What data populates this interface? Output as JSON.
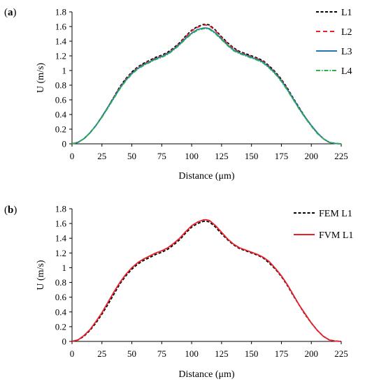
{
  "chart_data": [
    {
      "type": "line",
      "panel_label": "a",
      "xlabel": "Distance (μm)",
      "ylabel": "U (m/s)",
      "xlim": [
        0,
        225
      ],
      "ylim": [
        0,
        1.8
      ],
      "xticks": [
        0,
        25,
        50,
        75,
        100,
        125,
        150,
        175,
        200,
        225
      ],
      "yticks": [
        0,
        0.2,
        0.4,
        0.6,
        0.8,
        1,
        1.2,
        1.4,
        1.6,
        1.8
      ],
      "grid": false,
      "legend": "top-right",
      "x": [
        0,
        5,
        10,
        15,
        20,
        25,
        30,
        35,
        40,
        45,
        50,
        55,
        60,
        65,
        70,
        75,
        80,
        85,
        90,
        95,
        100,
        105,
        110,
        112.5,
        115,
        120,
        125,
        130,
        135,
        140,
        145,
        150,
        155,
        160,
        165,
        170,
        175,
        180,
        185,
        190,
        195,
        200,
        205,
        210,
        215,
        220,
        225
      ],
      "series": [
        {
          "name": "L1",
          "color": "#000000",
          "dash": "4,2.5",
          "values": [
            0,
            0.02,
            0.07,
            0.15,
            0.25,
            0.37,
            0.5,
            0.64,
            0.78,
            0.89,
            0.98,
            1.05,
            1.1,
            1.14,
            1.18,
            1.21,
            1.25,
            1.31,
            1.38,
            1.47,
            1.55,
            1.6,
            1.63,
            1.63,
            1.62,
            1.55,
            1.46,
            1.38,
            1.31,
            1.26,
            1.23,
            1.2,
            1.17,
            1.13,
            1.06,
            0.98,
            0.88,
            0.76,
            0.62,
            0.49,
            0.36,
            0.25,
            0.15,
            0.07,
            0.02,
            0.005,
            0
          ]
        },
        {
          "name": "L2",
          "color": "#e8202a",
          "dash": "6,4",
          "values": [
            0,
            0.02,
            0.07,
            0.15,
            0.25,
            0.37,
            0.5,
            0.64,
            0.77,
            0.88,
            0.97,
            1.04,
            1.09,
            1.13,
            1.17,
            1.2,
            1.24,
            1.3,
            1.37,
            1.46,
            1.54,
            1.59,
            1.62,
            1.62,
            1.61,
            1.54,
            1.45,
            1.37,
            1.3,
            1.25,
            1.22,
            1.19,
            1.16,
            1.12,
            1.05,
            0.97,
            0.87,
            0.75,
            0.61,
            0.48,
            0.36,
            0.25,
            0.15,
            0.07,
            0.02,
            0.005,
            0
          ]
        },
        {
          "name": "L3",
          "color": "#1f78b4",
          "dash": "",
          "values": [
            0,
            0.02,
            0.07,
            0.15,
            0.25,
            0.37,
            0.5,
            0.63,
            0.76,
            0.87,
            0.96,
            1.03,
            1.08,
            1.12,
            1.16,
            1.19,
            1.23,
            1.29,
            1.36,
            1.44,
            1.51,
            1.56,
            1.58,
            1.58,
            1.57,
            1.51,
            1.43,
            1.35,
            1.28,
            1.24,
            1.21,
            1.18,
            1.15,
            1.11,
            1.04,
            0.96,
            0.86,
            0.74,
            0.61,
            0.48,
            0.36,
            0.25,
            0.15,
            0.07,
            0.02,
            0.005,
            0
          ]
        },
        {
          "name": "L4",
          "color": "#2bb34a",
          "dash": "6,2,1.5,2",
          "values": [
            0,
            0.02,
            0.07,
            0.15,
            0.25,
            0.36,
            0.49,
            0.62,
            0.75,
            0.86,
            0.95,
            1.02,
            1.07,
            1.11,
            1.15,
            1.18,
            1.22,
            1.28,
            1.35,
            1.43,
            1.5,
            1.55,
            1.57,
            1.57,
            1.56,
            1.5,
            1.42,
            1.34,
            1.27,
            1.23,
            1.2,
            1.17,
            1.14,
            1.1,
            1.03,
            0.95,
            0.85,
            0.73,
            0.6,
            0.47,
            0.35,
            0.24,
            0.14,
            0.07,
            0.02,
            0.005,
            0
          ]
        }
      ]
    },
    {
      "type": "line",
      "panel_label": "b",
      "xlabel": "Distance (μm)",
      "ylabel": "U (m/s)",
      "xlim": [
        0,
        225
      ],
      "ylim": [
        0,
        1.8
      ],
      "xticks": [
        0,
        25,
        50,
        75,
        100,
        125,
        150,
        175,
        200,
        225
      ],
      "yticks": [
        0,
        0.2,
        0.4,
        0.6,
        0.8,
        1,
        1.2,
        1.4,
        1.6,
        1.8
      ],
      "grid": false,
      "legend": "top-right",
      "x": [
        0,
        5,
        10,
        15,
        20,
        25,
        30,
        35,
        40,
        45,
        50,
        55,
        60,
        65,
        70,
        75,
        80,
        85,
        90,
        95,
        100,
        105,
        110,
        112.5,
        115,
        120,
        125,
        130,
        135,
        140,
        145,
        150,
        155,
        160,
        165,
        170,
        175,
        180,
        185,
        190,
        195,
        200,
        205,
        210,
        215,
        220,
        225
      ],
      "series": [
        {
          "name": "FEM L1",
          "color": "#000000",
          "dash": "4,2.5",
          "values": [
            0,
            0.02,
            0.07,
            0.15,
            0.25,
            0.37,
            0.5,
            0.64,
            0.78,
            0.89,
            0.98,
            1.05,
            1.1,
            1.14,
            1.18,
            1.21,
            1.25,
            1.31,
            1.38,
            1.47,
            1.55,
            1.6,
            1.63,
            1.63,
            1.62,
            1.55,
            1.46,
            1.38,
            1.31,
            1.26,
            1.23,
            1.2,
            1.17,
            1.13,
            1.06,
            0.98,
            0.88,
            0.76,
            0.62,
            0.49,
            0.36,
            0.25,
            0.15,
            0.07,
            0.02,
            0.005,
            0
          ]
        },
        {
          "name": "FVM L1",
          "color": "#e8202a",
          "dash": "",
          "values": [
            0,
            0.02,
            0.08,
            0.16,
            0.27,
            0.39,
            0.53,
            0.67,
            0.8,
            0.91,
            1.0,
            1.07,
            1.12,
            1.16,
            1.2,
            1.23,
            1.27,
            1.33,
            1.4,
            1.49,
            1.57,
            1.62,
            1.65,
            1.65,
            1.64,
            1.57,
            1.48,
            1.39,
            1.32,
            1.27,
            1.24,
            1.21,
            1.18,
            1.14,
            1.08,
            0.99,
            0.89,
            0.77,
            0.63,
            0.49,
            0.37,
            0.25,
            0.15,
            0.07,
            0.02,
            0.005,
            0
          ]
        }
      ]
    }
  ]
}
